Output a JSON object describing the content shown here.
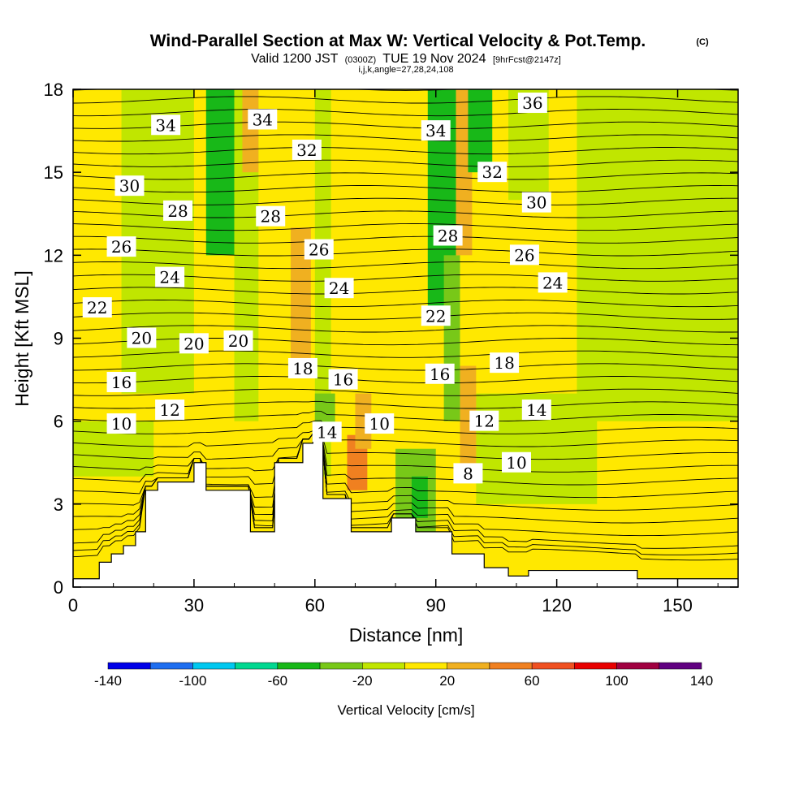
{
  "chart_data": {
    "type": "heatmap",
    "title": "Wind-Parallel Section at Max W: Vertical Velocity & Pot.Temp.",
    "title_mark": "(C)",
    "subtitle_main": "Valid 1200 JST",
    "subtitle_utc": "(0300Z)",
    "subtitle_date": "TUE 19 Nov 2024",
    "subtitle_fcst": "[9hrFcst@2147z]",
    "grid_info": "i,j,k,angle=27,28,24,108",
    "xlabel": "Distance [nm]",
    "ylabel": "Height [Kft MSL]",
    "xlim": [
      0,
      165
    ],
    "ylim": [
      0,
      18
    ],
    "xticks": [
      "0",
      "30",
      "60",
      "90",
      "120",
      "150"
    ],
    "yticks": [
      "0",
      "3",
      "6",
      "9",
      "12",
      "15",
      "18"
    ],
    "colorbar": {
      "title": "Vertical Velocity [cm/s]",
      "labels": [
        "-140",
        "-100",
        "-60",
        "-20",
        "20",
        "60",
        "100",
        "140"
      ],
      "bins": [
        {
          "from": -140,
          "to": -120,
          "color": "#0000e8"
        },
        {
          "from": -120,
          "to": -100,
          "color": "#1e6ef0"
        },
        {
          "from": -100,
          "to": -80,
          "color": "#00c8f0"
        },
        {
          "from": -80,
          "to": -60,
          "color": "#00d890"
        },
        {
          "from": -60,
          "to": -40,
          "color": "#18b818"
        },
        {
          "from": -40,
          "to": -20,
          "color": "#78c818"
        },
        {
          "from": -20,
          "to": 0,
          "color": "#c0e600"
        },
        {
          "from": 0,
          "to": 20,
          "color": "#ffe800"
        },
        {
          "from": 20,
          "to": 40,
          "color": "#f0b020"
        },
        {
          "from": 40,
          "to": 60,
          "color": "#f08020"
        },
        {
          "from": 60,
          "to": 80,
          "color": "#f05020"
        },
        {
          "from": 80,
          "to": 100,
          "color": "#e80000"
        },
        {
          "from": 100,
          "to": 120,
          "color": "#a00040"
        },
        {
          "from": 120,
          "to": 140,
          "color": "#600080"
        }
      ]
    },
    "terrain_profile": {
      "x": [
        0,
        6.5,
        6.5,
        9.5,
        9.5,
        12.5,
        12.5,
        15.5,
        15.5,
        18,
        18,
        21,
        21,
        30,
        30,
        33,
        33,
        44,
        44,
        50,
        50,
        57,
        57,
        59.5,
        59.5,
        62,
        62,
        69,
        69,
        79,
        79,
        85,
        85,
        94,
        94,
        102,
        102,
        108,
        108,
        113,
        113,
        140,
        140,
        145,
        145,
        165
      ],
      "y": [
        0.3,
        0.3,
        0.9,
        0.9,
        1.2,
        1.2,
        1.5,
        1.5,
        2.0,
        2.0,
        3.5,
        3.5,
        3.8,
        3.8,
        4.5,
        4.5,
        3.5,
        3.5,
        2.0,
        2.0,
        4.5,
        4.5,
        5.2,
        5.2,
        5.5,
        5.5,
        3.2,
        3.2,
        2.0,
        2.0,
        2.5,
        2.5,
        2.0,
        2.0,
        1.2,
        1.2,
        0.7,
        0.7,
        0.4,
        0.4,
        0.6,
        0.6,
        0.3,
        0.3,
        0.3,
        0.3
      ]
    },
    "vertical_velocity_zones": [
      {
        "x": [
          0,
          165
        ],
        "y": [
          0,
          18
        ],
        "w": 10
      },
      {
        "x": [
          12,
          30
        ],
        "y": [
          7,
          18
        ],
        "w": -10
      },
      {
        "x": [
          100,
          130
        ],
        "y": [
          3,
          7
        ],
        "w": -10
      },
      {
        "x": [
          33,
          40
        ],
        "y": [
          12,
          18
        ],
        "w": -50
      },
      {
        "x": [
          40,
          46
        ],
        "y": [
          6,
          18
        ],
        "w": -10
      },
      {
        "x": [
          42,
          46
        ],
        "y": [
          15,
          18
        ],
        "w": 30
      },
      {
        "x": [
          60,
          64
        ],
        "y": [
          4,
          18
        ],
        "w": -10
      },
      {
        "x": [
          54,
          59
        ],
        "y": [
          8,
          13
        ],
        "w": 30
      },
      {
        "x": [
          60,
          65
        ],
        "y": [
          5.5,
          7
        ],
        "w": -30
      },
      {
        "x": [
          68,
          73
        ],
        "y": [
          3.5,
          5.5
        ],
        "w": 50
      },
      {
        "x": [
          70,
          74
        ],
        "y": [
          5,
          7
        ],
        "w": 30
      },
      {
        "x": [
          80,
          90
        ],
        "y": [
          2,
          5
        ],
        "w": -30
      },
      {
        "x": [
          84,
          88
        ],
        "y": [
          2.5,
          4
        ],
        "w": -50
      },
      {
        "x": [
          88,
          95
        ],
        "y": [
          10,
          18
        ],
        "w": -50
      },
      {
        "x": [
          92,
          96
        ],
        "y": [
          6,
          12
        ],
        "w": -30
      },
      {
        "x": [
          96,
          100
        ],
        "y": [
          4,
          8
        ],
        "w": 30
      },
      {
        "x": [
          95,
          99
        ],
        "y": [
          12,
          18
        ],
        "w": 30
      },
      {
        "x": [
          98,
          104
        ],
        "y": [
          15,
          18
        ],
        "w": -50
      },
      {
        "x": [
          108,
          118
        ],
        "y": [
          14,
          18
        ],
        "w": -10
      },
      {
        "x": [
          125,
          165
        ],
        "y": [
          6,
          18
        ],
        "w": -10
      },
      {
        "x": [
          0,
          20
        ],
        "y": [
          4,
          6
        ],
        "w": -10
      }
    ],
    "isentrope_labels": [
      {
        "text": "34",
        "x": 23,
        "y": 16.7
      },
      {
        "text": "34",
        "x": 47,
        "y": 16.9
      },
      {
        "text": "32",
        "x": 58,
        "y": 15.8
      },
      {
        "text": "34",
        "x": 90,
        "y": 16.5
      },
      {
        "text": "36",
        "x": 114,
        "y": 17.5
      },
      {
        "text": "30",
        "x": 14,
        "y": 14.5
      },
      {
        "text": "32",
        "x": 104,
        "y": 15.0
      },
      {
        "text": "28",
        "x": 26,
        "y": 13.6
      },
      {
        "text": "28",
        "x": 49,
        "y": 13.4
      },
      {
        "text": "30",
        "x": 115,
        "y": 13.9
      },
      {
        "text": "26",
        "x": 12,
        "y": 12.3
      },
      {
        "text": "26",
        "x": 61,
        "y": 12.2
      },
      {
        "text": "28",
        "x": 93,
        "y": 12.7
      },
      {
        "text": "26",
        "x": 112,
        "y": 12.0
      },
      {
        "text": "24",
        "x": 24,
        "y": 11.2
      },
      {
        "text": "24",
        "x": 66,
        "y": 10.8
      },
      {
        "text": "24",
        "x": 119,
        "y": 11.0
      },
      {
        "text": "22",
        "x": 6,
        "y": 10.1
      },
      {
        "text": "22",
        "x": 90,
        "y": 9.8
      },
      {
        "text": "20",
        "x": 17,
        "y": 9.0
      },
      {
        "text": "20",
        "x": 30,
        "y": 8.8
      },
      {
        "text": "20",
        "x": 41,
        "y": 8.9
      },
      {
        "text": "18",
        "x": 57,
        "y": 7.9
      },
      {
        "text": "18",
        "x": 107,
        "y": 8.1
      },
      {
        "text": "16",
        "x": 12,
        "y": 7.4
      },
      {
        "text": "16",
        "x": 67,
        "y": 7.5
      },
      {
        "text": "16",
        "x": 91,
        "y": 7.7
      },
      {
        "text": "14",
        "x": 115,
        "y": 6.4
      },
      {
        "text": "12",
        "x": 24,
        "y": 6.4
      },
      {
        "text": "12",
        "x": 102,
        "y": 6.0
      },
      {
        "text": "10",
        "x": 12,
        "y": 5.9
      },
      {
        "text": "10",
        "x": 76,
        "y": 5.9
      },
      {
        "text": "10",
        "x": 110,
        "y": 4.5
      },
      {
        "text": "14",
        "x": 63,
        "y": 5.6
      },
      {
        "text": "8",
        "x": 98,
        "y": 4.1
      }
    ]
  }
}
